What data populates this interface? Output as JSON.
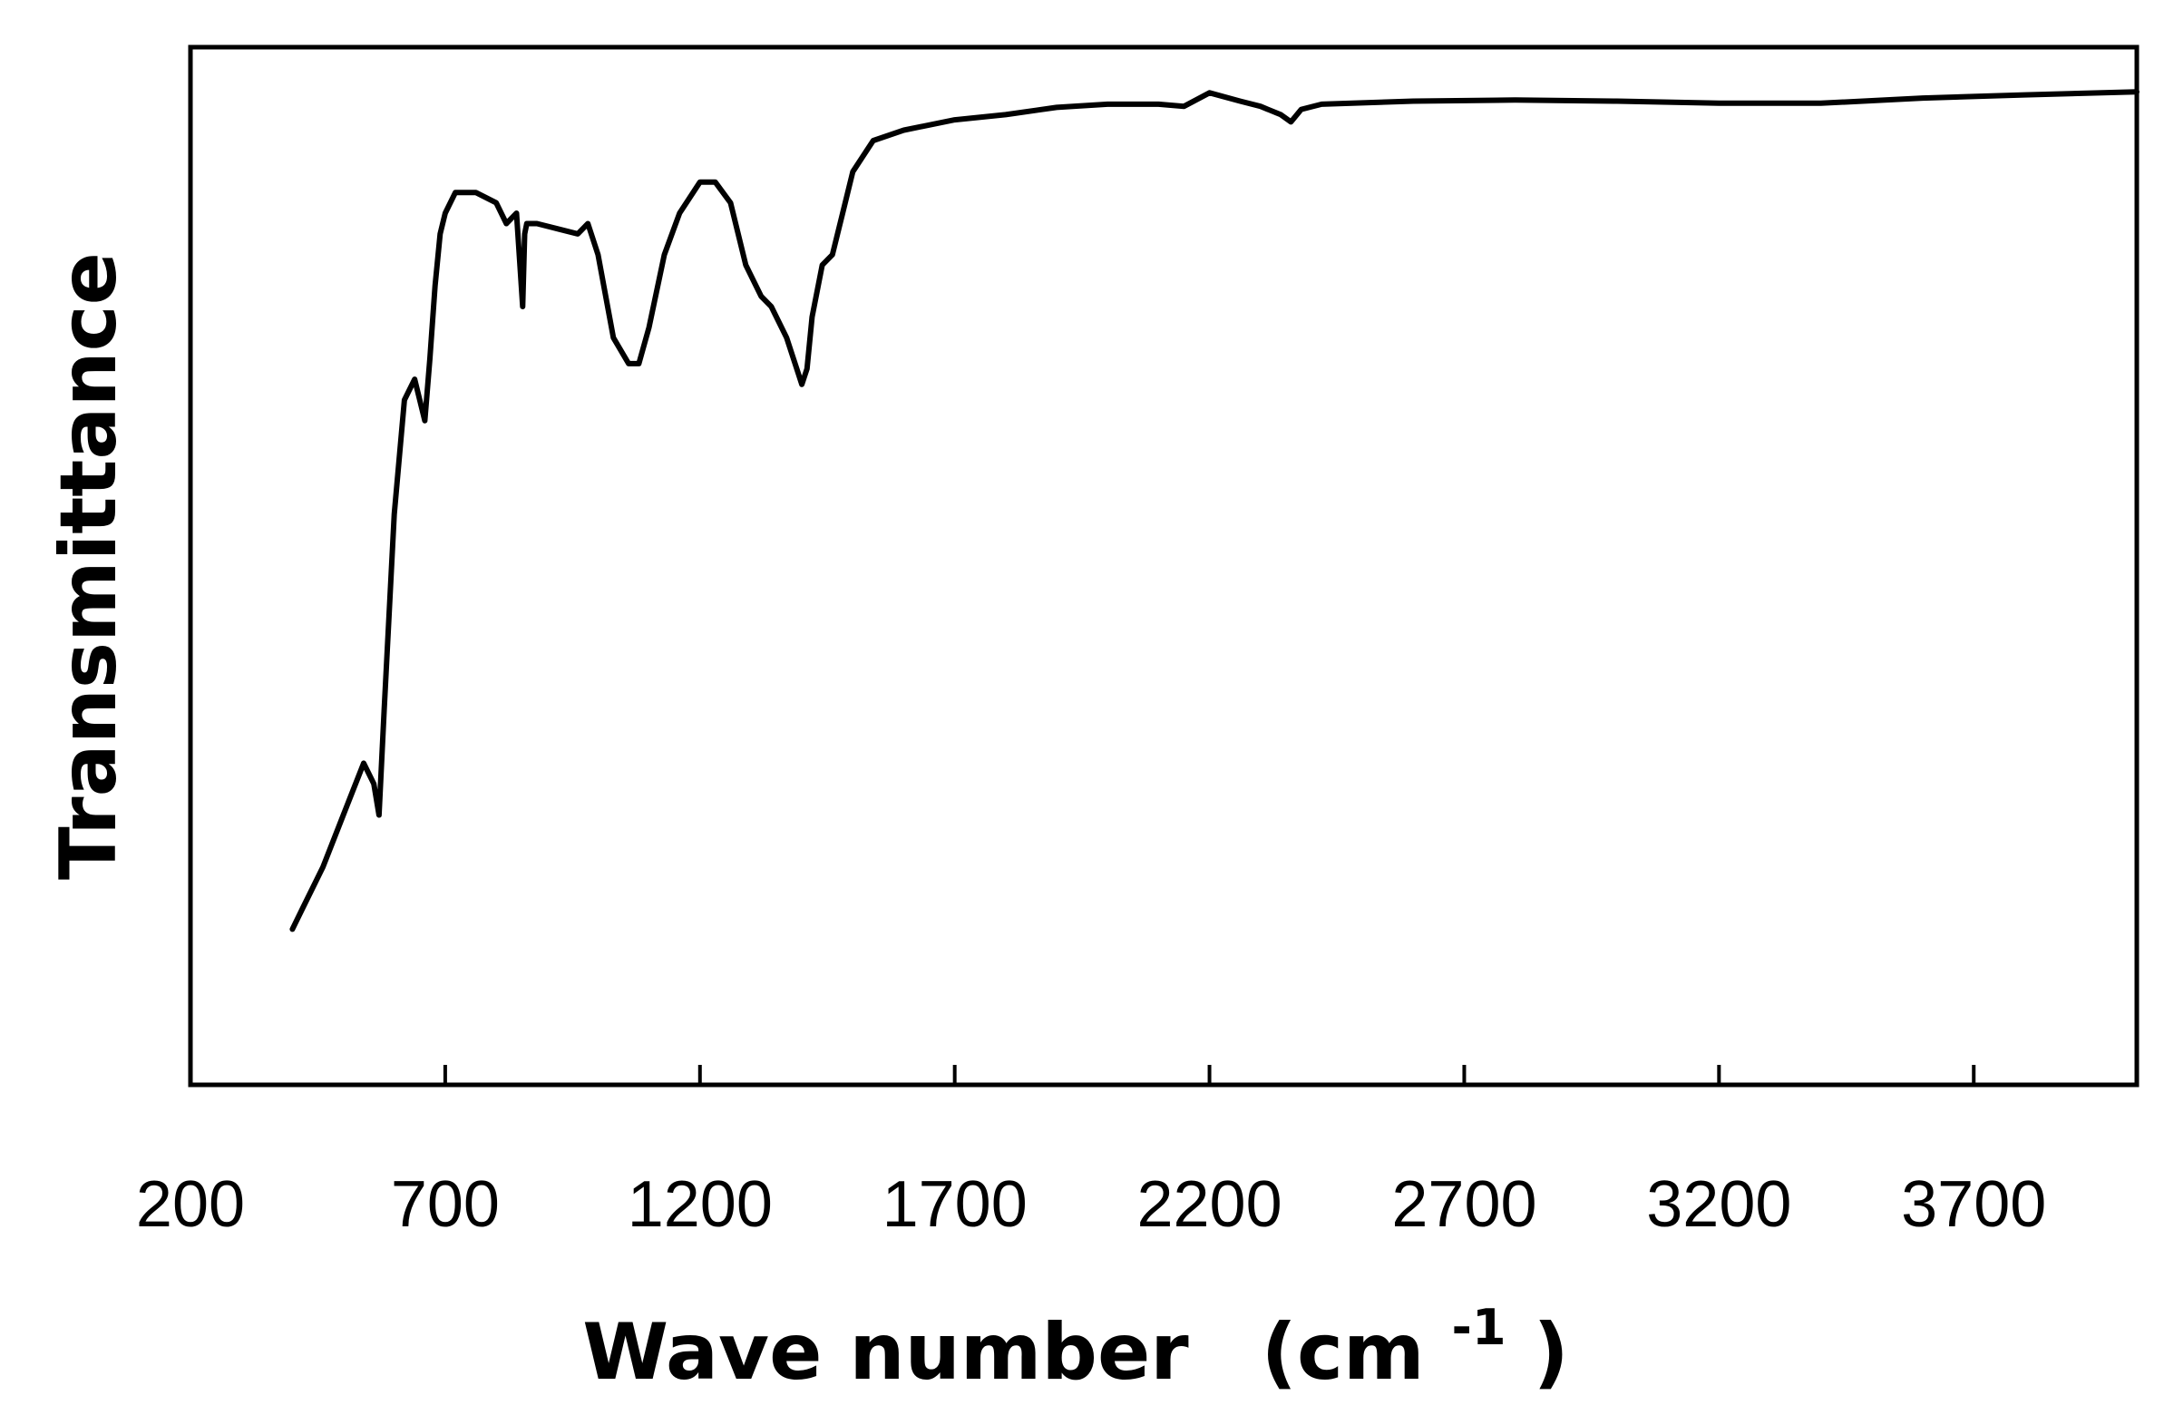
{
  "chart_data": {
    "type": "line",
    "title": "",
    "xlabel": "Wave number",
    "xlabel_unit_open": "(cm",
    "xlabel_unit_sup": "-1",
    "xlabel_unit_close": ")",
    "ylabel": "Transmittance",
    "xlim": [
      200,
      4020
    ],
    "ylim": [
      0,
      100
    ],
    "x_ticks": [
      200,
      700,
      1200,
      1700,
      2200,
      2700,
      3200,
      3700
    ],
    "x_tick_labels": [
      "200",
      "700",
      "1200",
      "1700",
      "2200",
      "2700",
      "3200",
      "3700"
    ],
    "y_ticks_shown": false,
    "grid": false,
    "legend": "none",
    "line_color": "#000000",
    "series": [
      {
        "x": [
          400,
          420,
          460,
          500,
          540,
          560,
          570,
          580,
          600,
          620,
          640,
          660,
          670,
          680,
          690,
          700,
          720,
          760,
          800,
          820,
          840,
          852,
          856,
          860,
          880,
          920,
          960,
          980,
          1000,
          1030,
          1060,
          1080,
          1100,
          1130,
          1160,
          1200,
          1230,
          1260,
          1290,
          1320,
          1340,
          1370,
          1390,
          1400,
          1410,
          1420,
          1440,
          1460,
          1480,
          1500,
          1540,
          1600,
          1700,
          1800,
          1900,
          2000,
          2100,
          2150,
          2200,
          2260,
          2300,
          2340,
          2360,
          2380,
          2420,
          2600,
          2800,
          3000,
          3200,
          3400,
          3600,
          3800,
          4020
        ],
        "y": [
          15,
          17,
          21,
          26,
          31,
          29,
          26,
          36,
          55,
          66,
          68,
          64,
          70,
          77,
          82,
          84,
          86,
          86,
          85,
          83,
          84,
          75,
          82,
          83,
          83,
          82.5,
          82,
          83,
          80,
          72,
          69.5,
          69.5,
          73,
          80,
          84,
          87,
          87,
          85,
          79,
          76,
          75,
          72,
          69,
          67.5,
          69,
          74,
          79,
          80,
          84,
          88,
          91,
          92,
          93,
          93.5,
          94.2,
          94.5,
          94.5,
          94.3,
          95.6,
          94.8,
          94.3,
          93.5,
          92.8,
          94,
          94.5,
          94.8,
          94.9,
          94.8,
          94.6,
          94.6,
          95.1,
          95.4,
          95.7
        ]
      }
    ]
  }
}
